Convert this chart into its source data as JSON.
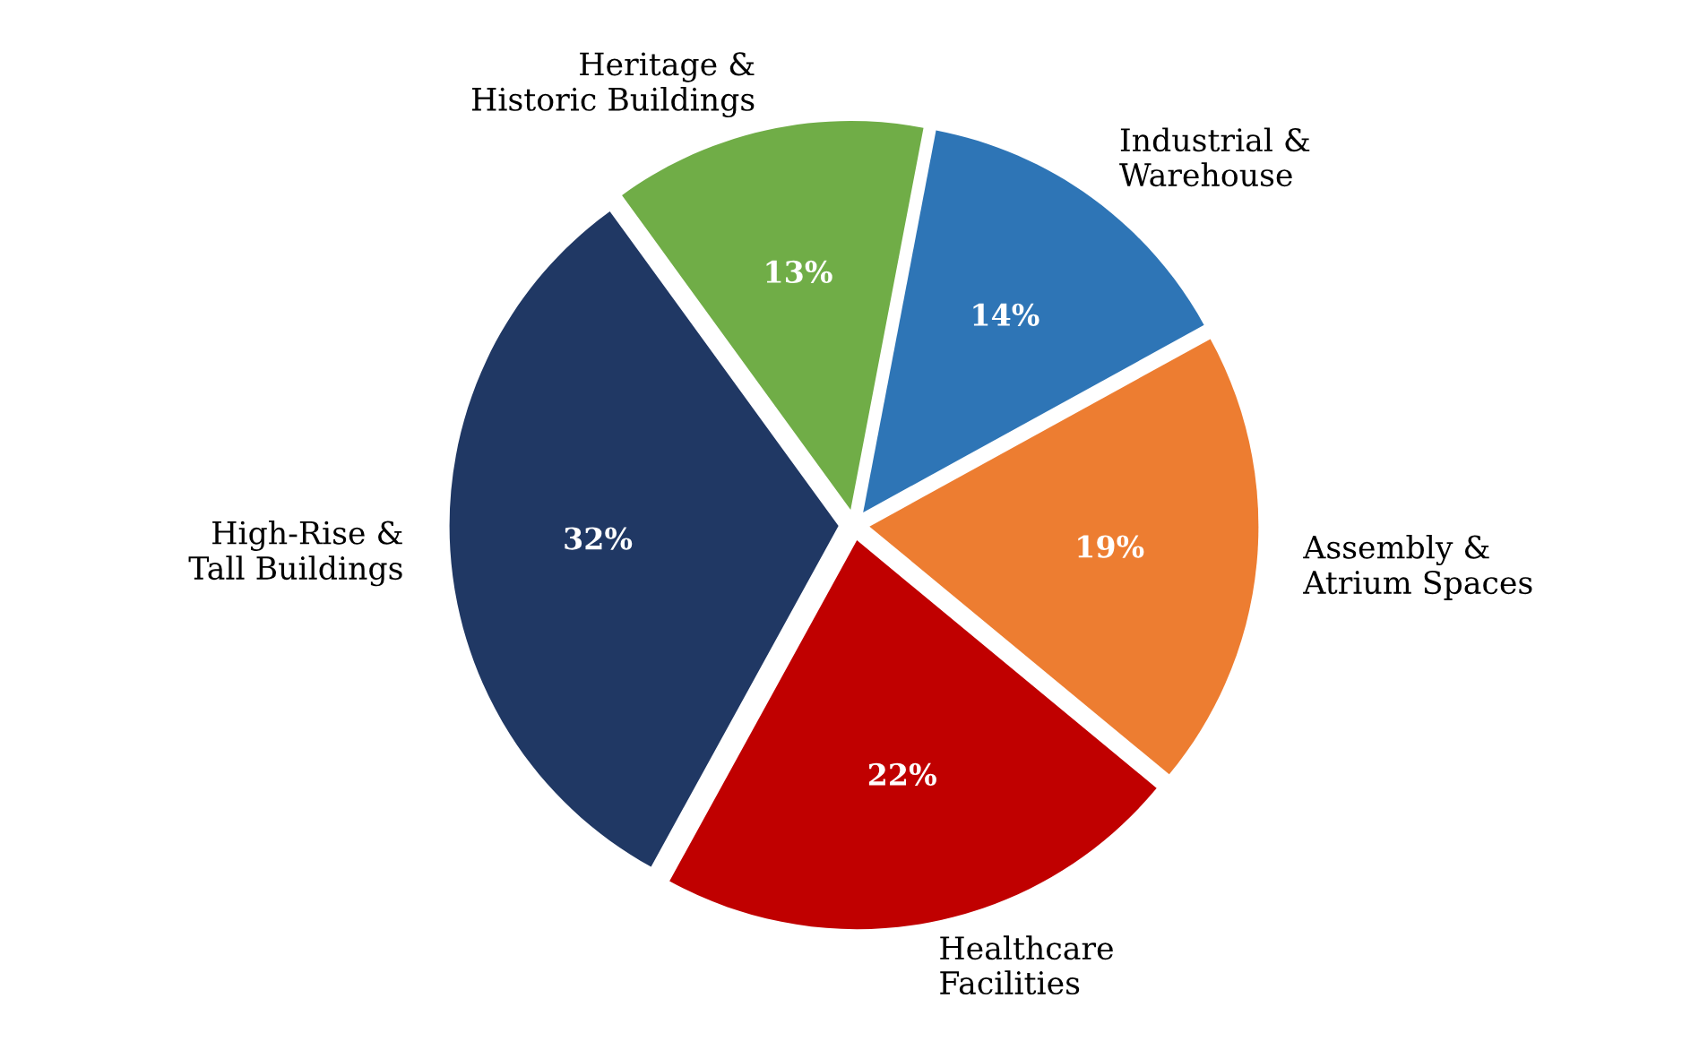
{
  "chart_data": {
    "type": "pie",
    "categories": [
      "High-Rise &\nTall Buildings",
      "Healthcare\nFacilities",
      "Assembly &\nAtrium Spaces",
      "Industrial &\nWarehouse",
      "Heritage &\nHistoric Buildings"
    ],
    "values": [
      32,
      22,
      19,
      14,
      13
    ],
    "colors": [
      "#203864",
      "#c00000",
      "#ed7d31",
      "#2e75b6",
      "#70ad47"
    ],
    "value_labels": [
      "32%",
      "22%",
      "19%",
      "14%",
      "13%"
    ]
  }
}
